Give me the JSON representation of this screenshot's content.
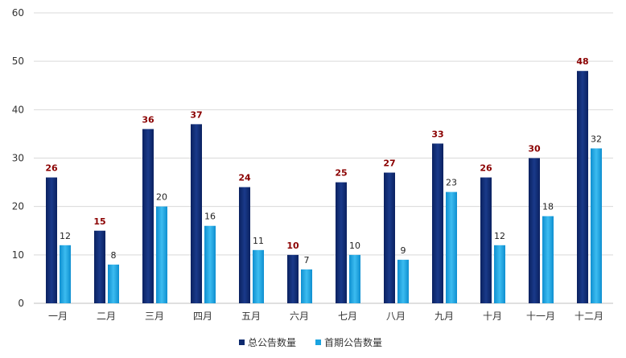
{
  "chart_data": {
    "type": "bar",
    "title": "",
    "xlabel": "",
    "ylabel": "",
    "ylim": [
      0,
      60
    ],
    "yticks": [
      0,
      10,
      20,
      30,
      40,
      50,
      60
    ],
    "grid": true,
    "legend_position": "bottom",
    "categories": [
      "一月",
      "二月",
      "三月",
      "四月",
      "五月",
      "六月",
      "七月",
      "八月",
      "九月",
      "十月",
      "十一月",
      "十二月"
    ],
    "series": [
      {
        "name": "总公告数量",
        "color": "#0d2a6e",
        "label_color": "#8b0000",
        "values": [
          26,
          15,
          36,
          37,
          24,
          10,
          25,
          27,
          33,
          26,
          30,
          48
        ]
      },
      {
        "name": "首期公告数量",
        "color": "#1aa3e0",
        "label_color": "#222222",
        "values": [
          12,
          8,
          20,
          16,
          11,
          7,
          10,
          9,
          23,
          12,
          18,
          32
        ]
      }
    ]
  }
}
